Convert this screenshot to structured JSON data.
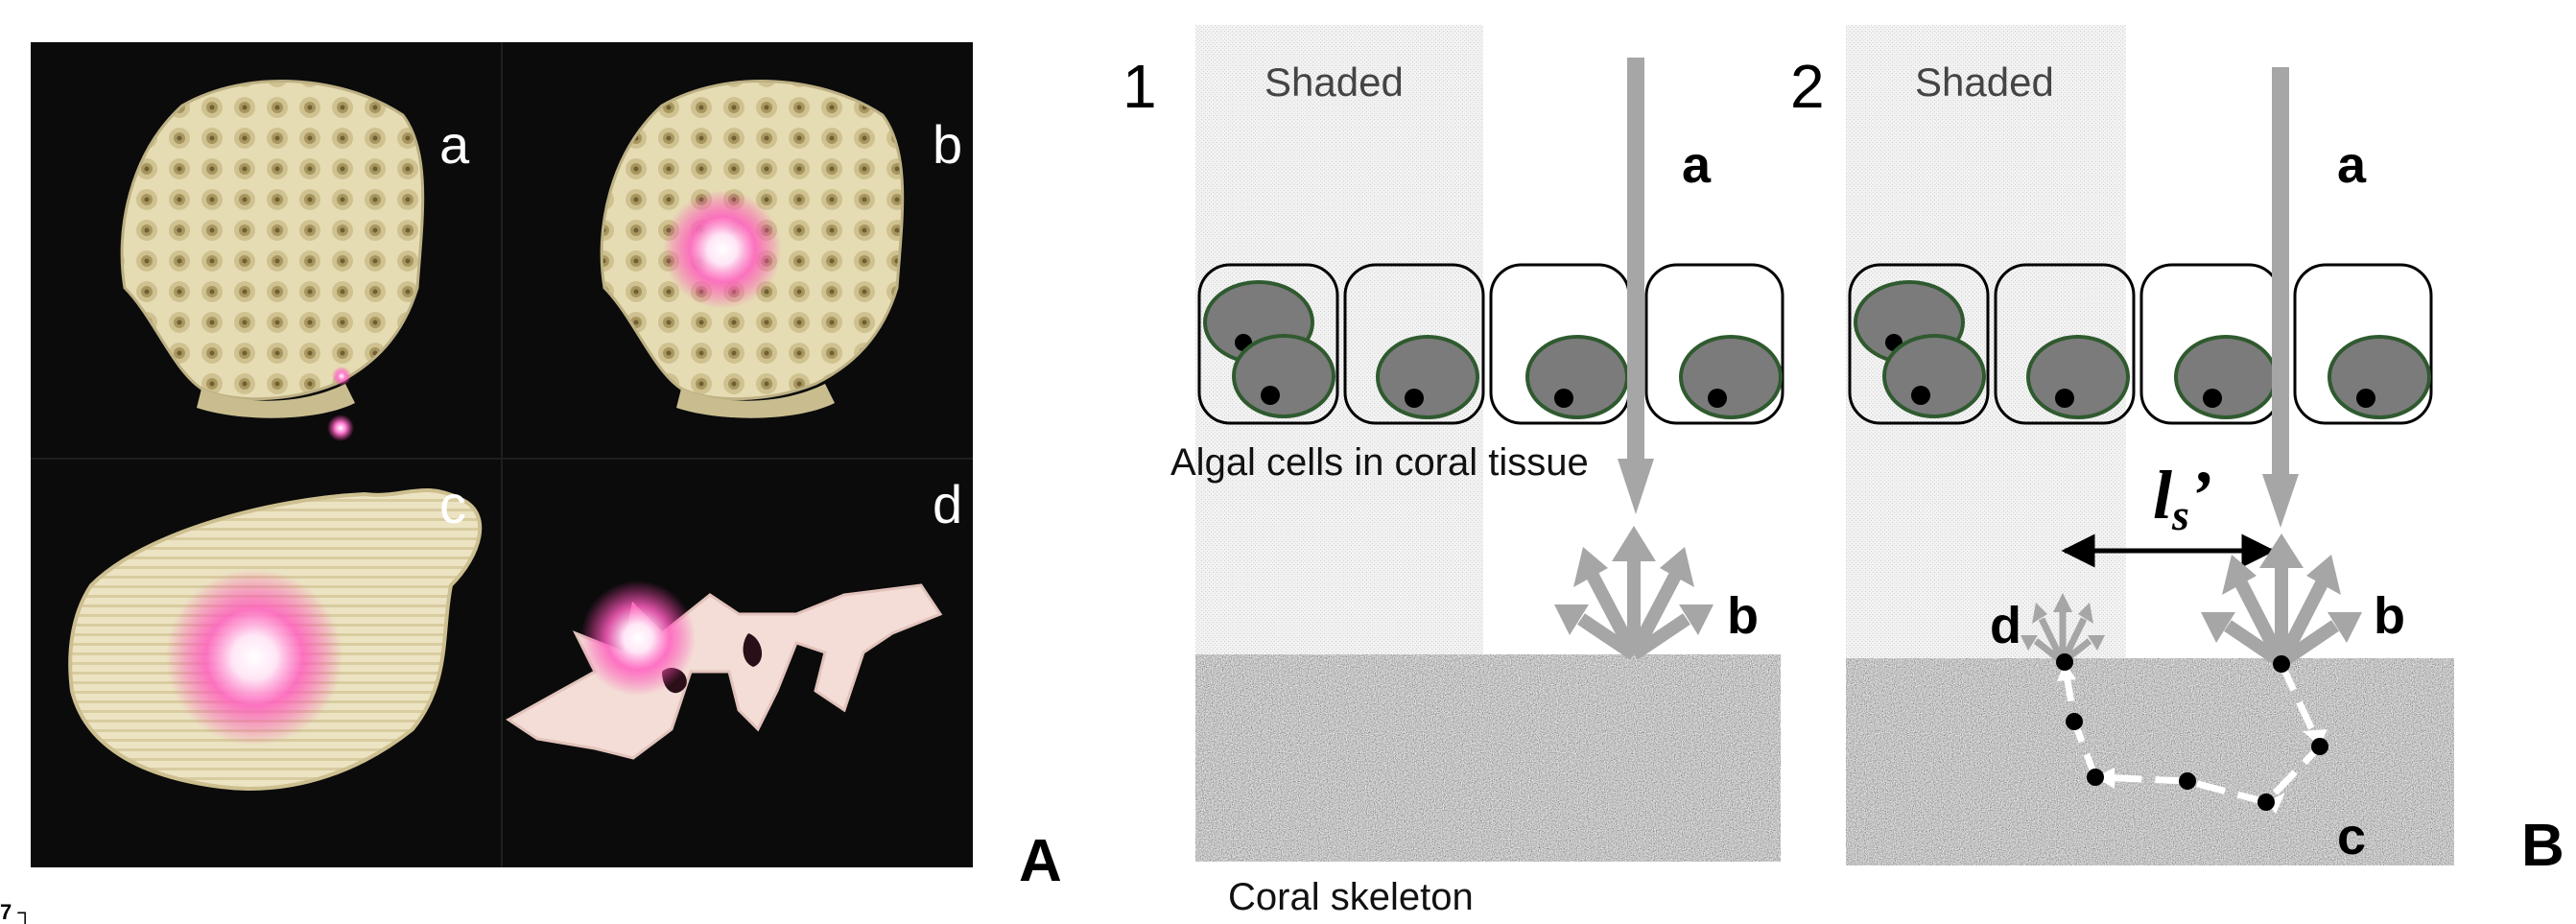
{
  "panel_a": {
    "photos": [
      {
        "label": "a"
      },
      {
        "label": "b"
      },
      {
        "label": "c"
      },
      {
        "label": "d"
      }
    ],
    "panel_letter": "A",
    "corner_mark": "7 ┐"
  },
  "panel_b": {
    "panel_letter": "B",
    "shading_label": "Shaded",
    "tissue_label": "Algal cells in coral tissue",
    "skeleton_label": "Coral skeleton",
    "diagrams": [
      {
        "number": "1",
        "labels": {
          "a": "a",
          "b": "b"
        }
      },
      {
        "number": "2",
        "labels": {
          "a": "a",
          "b": "b",
          "c": "c",
          "d": "d"
        },
        "distance_label": "l",
        "distance_subscript": "s",
        "distance_prime": "’"
      }
    ]
  },
  "colors": {
    "coral": "#e6dcb4",
    "laser_glow": "#ff3fae",
    "cell_fill": "#7b7b7b",
    "cell_outline": "#2f5a2f",
    "arrow_gray": "#a6a6a6",
    "shade": "#ececec"
  }
}
